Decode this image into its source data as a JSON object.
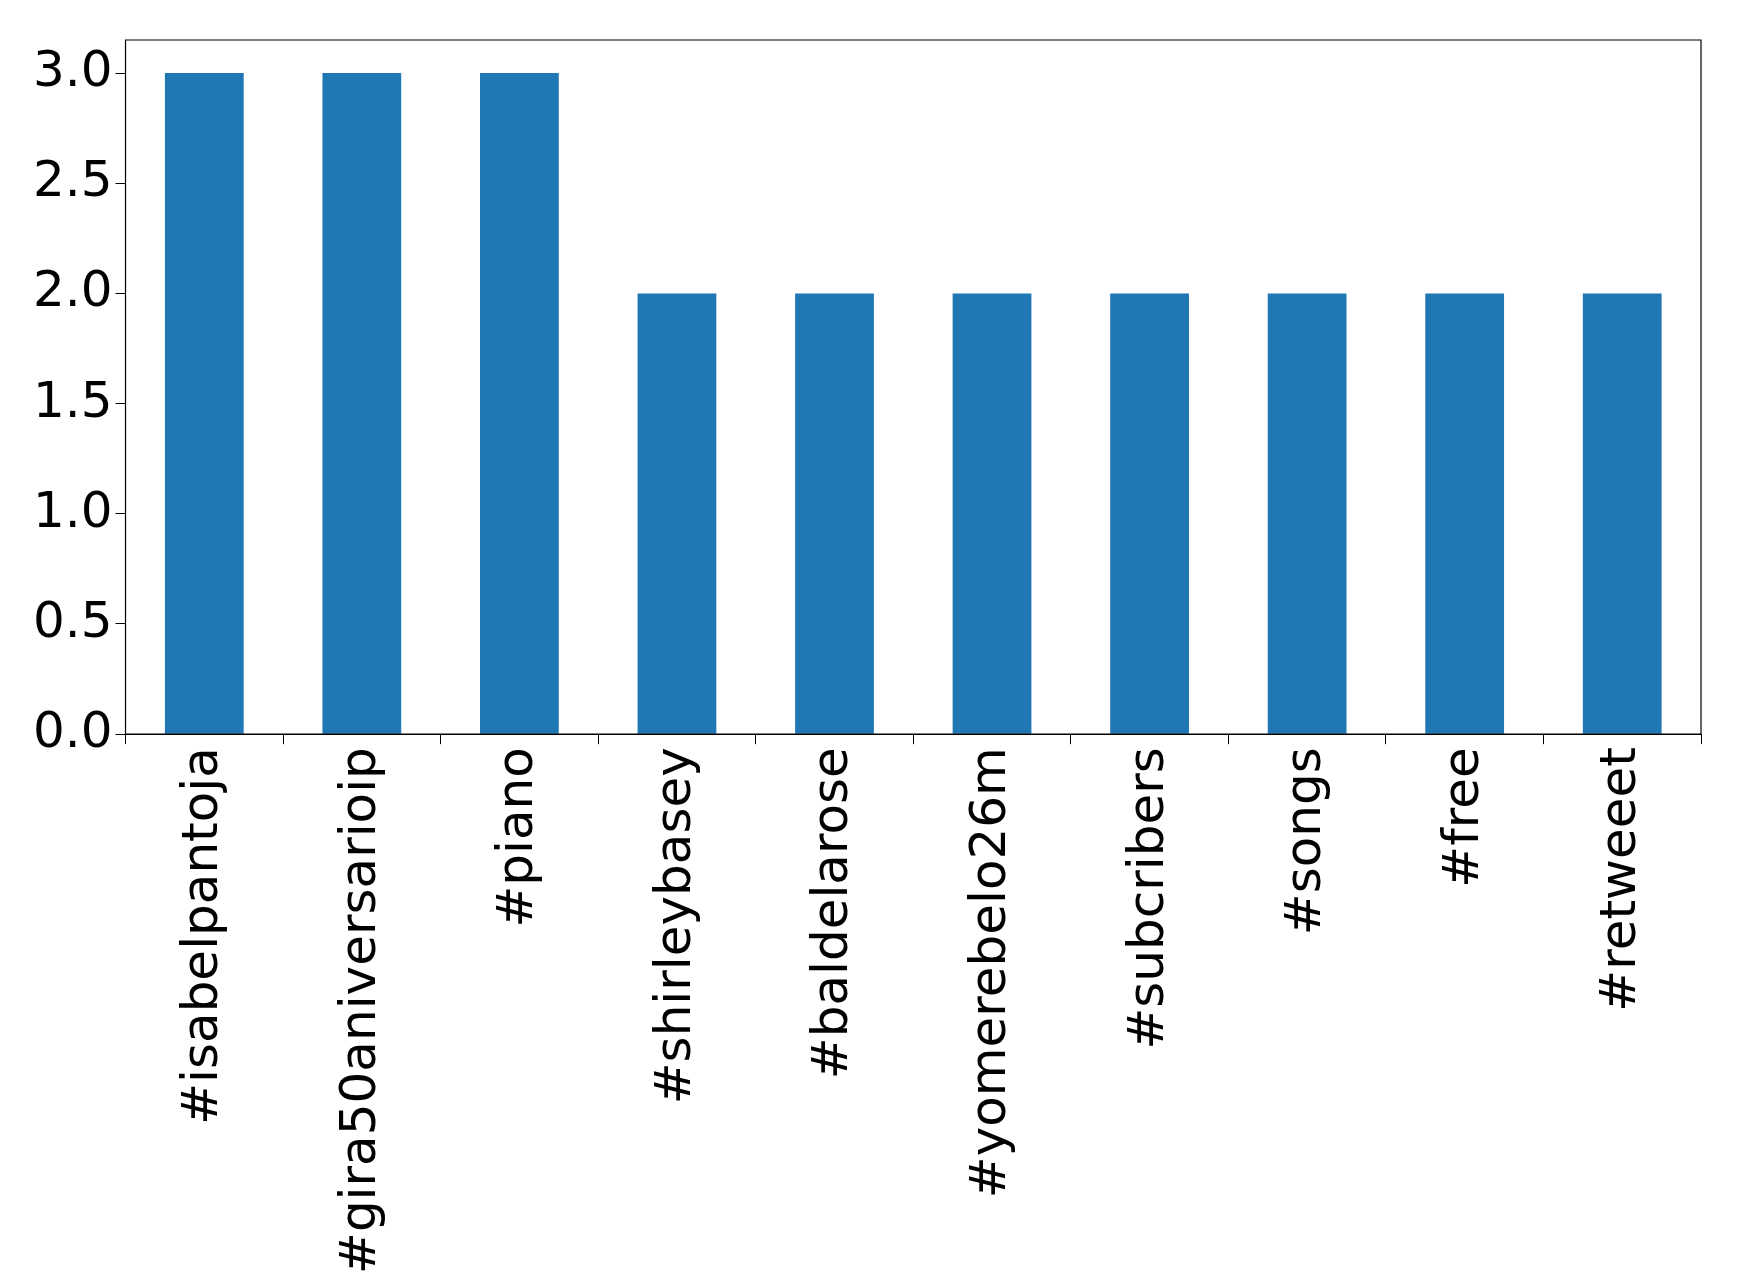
{
  "chart_data": {
    "type": "bar",
    "categories": [
      "#isabelpantoja",
      "#gira50aniversarioip",
      "#piano",
      "#shirleybasey",
      "#baldelarose",
      "#yomerebelo26m",
      "#subcribers",
      "#songs",
      "#free",
      "#retweeet"
    ],
    "values": [
      3,
      3,
      3,
      2,
      2,
      2,
      2,
      2,
      2,
      2
    ],
    "color": "#1f77b4",
    "ylim": [
      0,
      3.15
    ],
    "yticks": [
      {
        "value": 0,
        "label": "0.0"
      },
      {
        "value": 0.5,
        "label": "0.5"
      },
      {
        "value": 1,
        "label": "1.0"
      },
      {
        "value": 1.5,
        "label": "1.5"
      },
      {
        "value": 2,
        "label": "2.0"
      },
      {
        "value": 2.5,
        "label": "2.5"
      },
      {
        "value": 3,
        "label": "3.0"
      }
    ],
    "grid": false,
    "legend": false
  }
}
